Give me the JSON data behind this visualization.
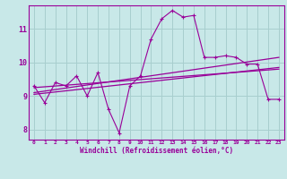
{
  "title": "",
  "xlabel": "Windchill (Refroidissement éolien,°C)",
  "ylabel": "",
  "xlim": [
    -0.5,
    23.5
  ],
  "ylim": [
    7.7,
    11.7
  ],
  "yticks": [
    8,
    9,
    10,
    11
  ],
  "xticks": [
    0,
    1,
    2,
    3,
    4,
    5,
    6,
    7,
    8,
    9,
    10,
    11,
    12,
    13,
    14,
    15,
    16,
    17,
    18,
    19,
    20,
    21,
    22,
    23
  ],
  "background_color": "#c8e8e8",
  "grid_color": "#a8cece",
  "line_color": "#990099",
  "series1_x": [
    0,
    1,
    2,
    3,
    4,
    5,
    6,
    7,
    8,
    9,
    10,
    11,
    12,
    13,
    14,
    15,
    16,
    17,
    18,
    19,
    20,
    21,
    22,
    23
  ],
  "series1_y": [
    9.3,
    8.8,
    9.4,
    9.3,
    9.6,
    9.0,
    9.7,
    8.6,
    7.9,
    9.3,
    9.6,
    10.7,
    11.3,
    11.55,
    11.35,
    11.4,
    10.15,
    10.15,
    10.2,
    10.15,
    9.95,
    9.95,
    8.9,
    8.9
  ],
  "series3_x": [
    0,
    23
  ],
  "series3_y": [
    9.25,
    9.8
  ],
  "series4_x": [
    0,
    23
  ],
  "series4_y": [
    9.1,
    10.15
  ],
  "series5_x": [
    0,
    23
  ],
  "series5_y": [
    9.05,
    9.85
  ]
}
